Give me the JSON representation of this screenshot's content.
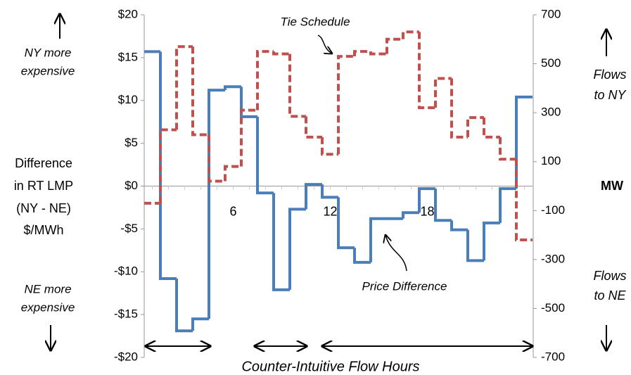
{
  "chart_data": {
    "type": "step",
    "categories": [
      null,
      null,
      null,
      null,
      null,
      "6",
      null,
      null,
      null,
      null,
      null,
      "12",
      null,
      null,
      null,
      null,
      null,
      "18",
      null,
      null,
      null,
      null,
      null,
      null
    ],
    "series": [
      {
        "name": "Price Difference",
        "color": "#4a7ebb",
        "axis": "y",
        "values": [
          15.7,
          -10.8,
          -16.9,
          -15.5,
          11.2,
          11.6,
          8.1,
          -0.8,
          -12.1,
          -2.7,
          0.2,
          -1.3,
          -7.2,
          -8.9,
          -3.8,
          -3.8,
          -3.1,
          -0.3,
          -4.0,
          -5.1,
          -8.7,
          -4.3,
          -0.3,
          10.4
        ]
      },
      {
        "name": "Tie Schedule",
        "color": "#c0504d",
        "axis": "y2",
        "dashed": true,
        "values": [
          -70,
          230,
          570,
          210,
          20,
          80,
          310,
          550,
          540,
          285,
          200,
          130,
          530,
          550,
          540,
          600,
          630,
          320,
          440,
          200,
          280,
          200,
          110,
          -220
        ]
      }
    ],
    "ylim": [
      -20,
      20
    ],
    "yticks": [
      {
        "value": -20,
        "label": "-$20"
      },
      {
        "value": -15,
        "label": "-$15"
      },
      {
        "value": -10,
        "label": "-$10"
      },
      {
        "value": -5,
        "label": "-$5"
      },
      {
        "value": 0,
        "label": "$0"
      },
      {
        "value": 5,
        "label": "$5"
      },
      {
        "value": 10,
        "label": "$10"
      },
      {
        "value": 15,
        "label": "$15"
      },
      {
        "value": 20,
        "label": "$20"
      }
    ],
    "y2lim": [
      -700,
      700
    ],
    "y2ticks": [
      -700,
      -500,
      -300,
      -100,
      100,
      300,
      500,
      700
    ],
    "ylabel": [
      "Difference",
      "in RT LMP",
      "(NY - NE)",
      "$/MWh"
    ],
    "y2label": "MW",
    "annotations": {
      "ny_expensive": [
        "NY more",
        "expensive"
      ],
      "ne_expensive": [
        "NE more",
        "expensive"
      ],
      "flows_ny": [
        "Flows",
        "to NY"
      ],
      "flows_ne": [
        "Flows",
        "to NE"
      ],
      "counter": "Counter-Intuitive Flow Hours"
    }
  }
}
